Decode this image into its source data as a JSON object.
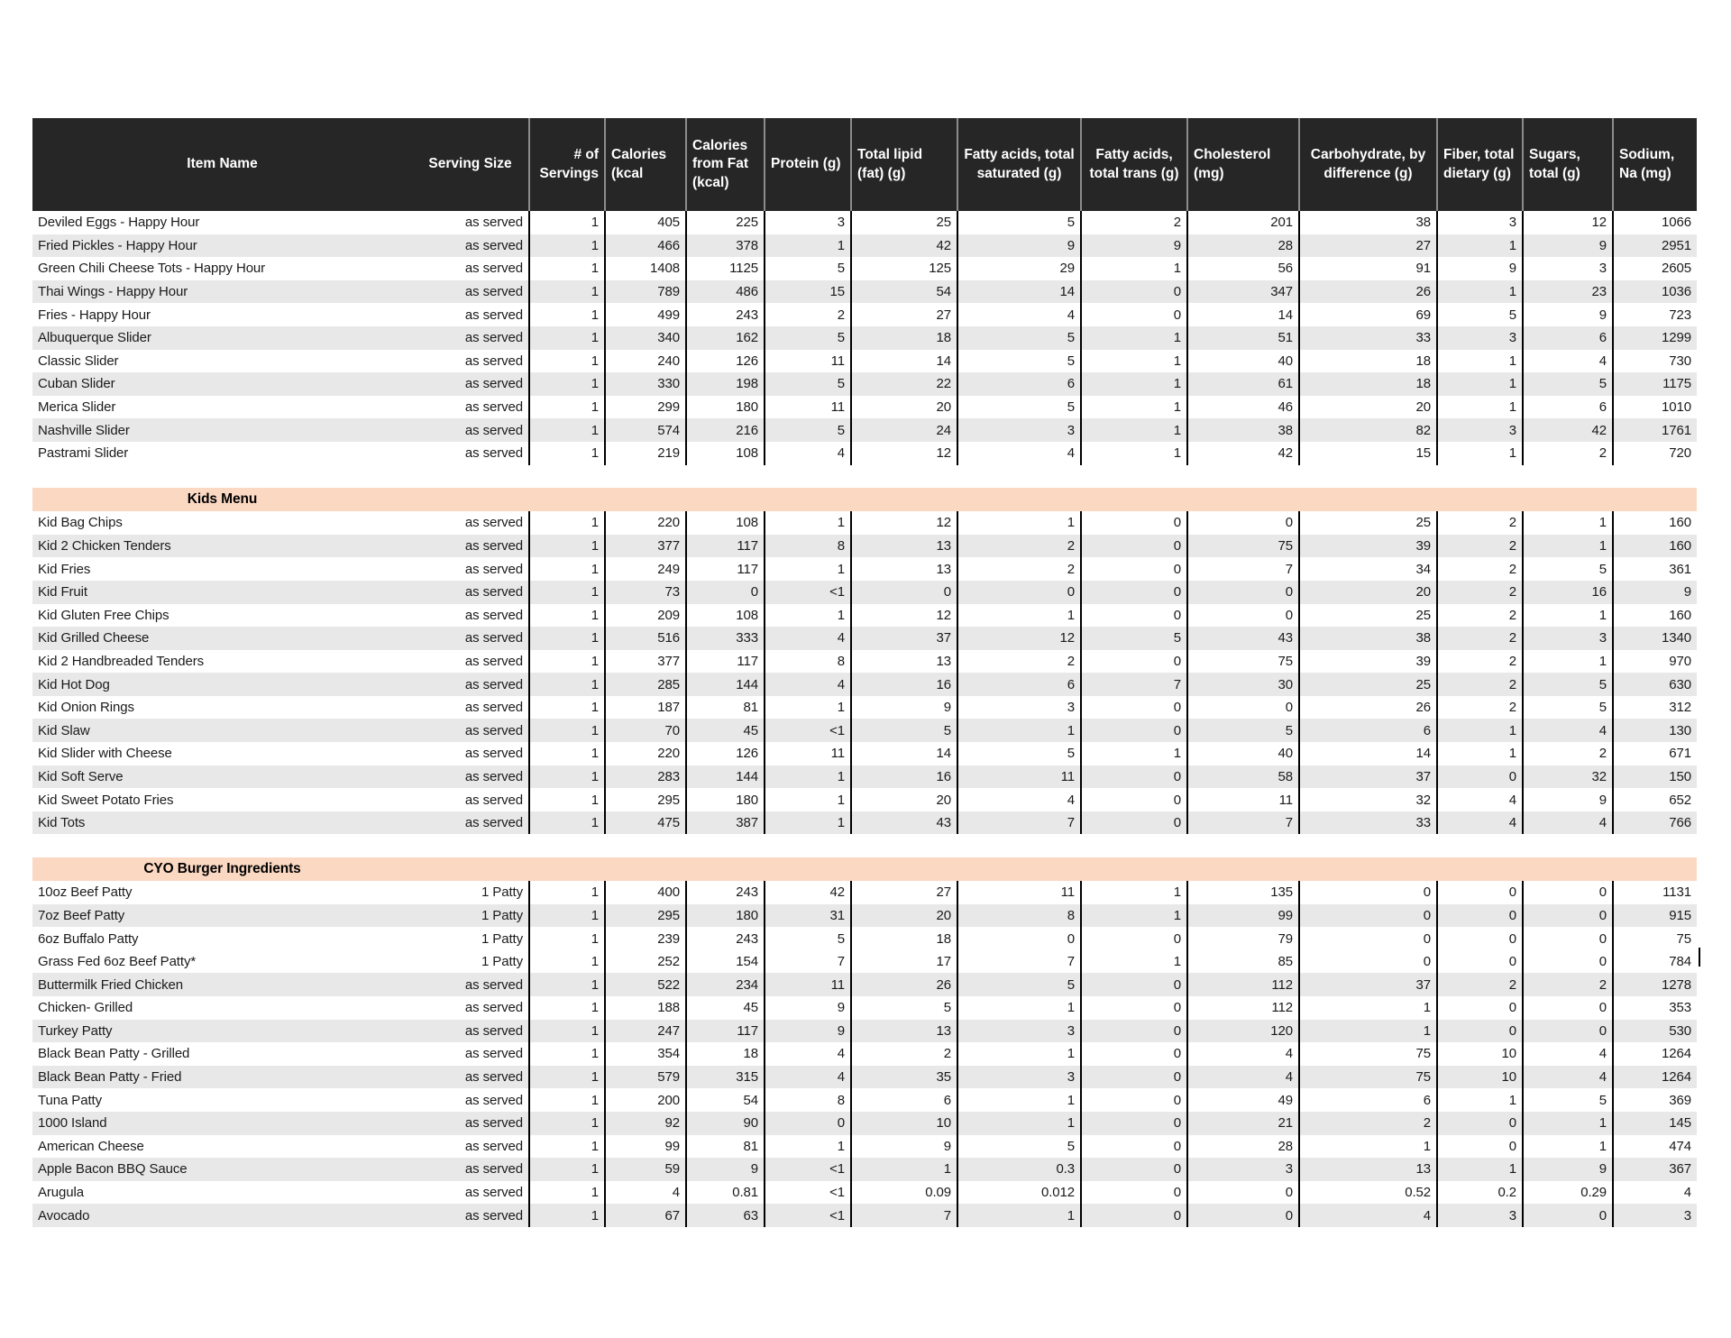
{
  "table": {
    "columns": [
      "Item Name",
      "Serving Size",
      "# of Servings",
      "Calories (kcal",
      "Calories from Fat (kcal)",
      "Protein (g)",
      "Total lipid (fat) (g)",
      "Fatty acids, total saturated (g)",
      "Fatty acids, total trans (g)",
      "Cholesterol (mg)",
      "Carbohydrate, by difference (g)",
      "Fiber, total dietary (g)",
      "Sugars, total (g)",
      "Sodium, Na (mg)"
    ],
    "sections": [
      {
        "title": "",
        "shaded_rows": [
          1,
          3,
          5,
          7,
          9
        ],
        "rows": [
          [
            "Deviled Eggs - Happy Hour",
            "as served",
            "1",
            "405",
            "225",
            "3",
            "25",
            "5",
            "2",
            "201",
            "38",
            "3",
            "12",
            "1066"
          ],
          [
            "Fried Pickles - Happy Hour",
            "as served",
            "1",
            "466",
            "378",
            "1",
            "42",
            "9",
            "9",
            "28",
            "27",
            "1",
            "9",
            "2951"
          ],
          [
            "Green Chili Cheese Tots - Happy Hour",
            "as served",
            "1",
            "1408",
            "1125",
            "5",
            "125",
            "29",
            "1",
            "56",
            "91",
            "9",
            "3",
            "2605"
          ],
          [
            "Thai Wings - Happy Hour",
            "as served",
            "1",
            "789",
            "486",
            "15",
            "54",
            "14",
            "0",
            "347",
            "26",
            "1",
            "23",
            "1036"
          ],
          [
            "Fries - Happy Hour",
            "as served",
            "1",
            "499",
            "243",
            "2",
            "27",
            "4",
            "0",
            "14",
            "69",
            "5",
            "9",
            "723"
          ],
          [
            "Albuquerque Slider",
            "as served",
            "1",
            "340",
            "162",
            "5",
            "18",
            "5",
            "1",
            "51",
            "33",
            "3",
            "6",
            "1299"
          ],
          [
            "Classic Slider",
            "as served",
            "1",
            "240",
            "126",
            "11",
            "14",
            "5",
            "1",
            "40",
            "18",
            "1",
            "4",
            "730"
          ],
          [
            "Cuban Slider",
            "as served",
            "1",
            "330",
            "198",
            "5",
            "22",
            "6",
            "1",
            "61",
            "18",
            "1",
            "5",
            "1175"
          ],
          [
            "Merica Slider",
            "as served",
            "1",
            "299",
            "180",
            "11",
            "20",
            "5",
            "1",
            "46",
            "20",
            "1",
            "6",
            "1010"
          ],
          [
            "Nashville Slider",
            "as served",
            "1",
            "574",
            "216",
            "5",
            "24",
            "3",
            "1",
            "38",
            "82",
            "3",
            "42",
            "1761"
          ],
          [
            "Pastrami Slider",
            "as served",
            "1",
            "219",
            "108",
            "4",
            "12",
            "4",
            "1",
            "42",
            "15",
            "1",
            "2",
            "720"
          ]
        ]
      },
      {
        "title": "Kids Menu",
        "shaded_rows": [
          1,
          3,
          5,
          7,
          9,
          11,
          13
        ],
        "rows": [
          [
            "Kid Bag Chips",
            "as served",
            "1",
            "220",
            "108",
            "1",
            "12",
            "1",
            "0",
            "0",
            "25",
            "2",
            "1",
            "160"
          ],
          [
            "Kid 2 Chicken Tenders",
            "as served",
            "1",
            "377",
            "117",
            "8",
            "13",
            "2",
            "0",
            "75",
            "39",
            "2",
            "1",
            "160"
          ],
          [
            "Kid Fries",
            "as served",
            "1",
            "249",
            "117",
            "1",
            "13",
            "2",
            "0",
            "7",
            "34",
            "2",
            "5",
            "361"
          ],
          [
            "Kid Fruit",
            "as served",
            "1",
            "73",
            "0",
            "<1",
            "0",
            "0",
            "0",
            "0",
            "20",
            "2",
            "16",
            "9"
          ],
          [
            "Kid Gluten Free Chips",
            "as served",
            "1",
            "209",
            "108",
            "1",
            "12",
            "1",
            "0",
            "0",
            "25",
            "2",
            "1",
            "160"
          ],
          [
            "Kid Grilled Cheese",
            "as served",
            "1",
            "516",
            "333",
            "4",
            "37",
            "12",
            "5",
            "43",
            "38",
            "2",
            "3",
            "1340"
          ],
          [
            "Kid 2 Handbreaded Tenders",
            "as served",
            "1",
            "377",
            "117",
            "8",
            "13",
            "2",
            "0",
            "75",
            "39",
            "2",
            "1",
            "970"
          ],
          [
            "Kid Hot Dog",
            "as served",
            "1",
            "285",
            "144",
            "4",
            "16",
            "6",
            "7",
            "30",
            "25",
            "2",
            "5",
            "630"
          ],
          [
            "Kid Onion Rings",
            "as served",
            "1",
            "187",
            "81",
            "1",
            "9",
            "3",
            "0",
            "0",
            "26",
            "2",
            "5",
            "312"
          ],
          [
            "Kid Slaw",
            "as served",
            "1",
            "70",
            "45",
            "<1",
            "5",
            "1",
            "0",
            "5",
            "6",
            "1",
            "4",
            "130"
          ],
          [
            "Kid Slider with Cheese",
            "as served",
            "1",
            "220",
            "126",
            "11",
            "14",
            "5",
            "1",
            "40",
            "14",
            "1",
            "2",
            "671"
          ],
          [
            "Kid Soft Serve",
            "as served",
            "1",
            "283",
            "144",
            "1",
            "16",
            "11",
            "0",
            "58",
            "37",
            "0",
            "32",
            "150"
          ],
          [
            "Kid Sweet Potato Fries",
            "as served",
            "1",
            "295",
            "180",
            "1",
            "20",
            "4",
            "0",
            "11",
            "32",
            "4",
            "9",
            "652"
          ],
          [
            "Kid Tots",
            "as served",
            "1",
            "475",
            "387",
            "1",
            "43",
            "7",
            "0",
            "7",
            "33",
            "4",
            "4",
            "766"
          ]
        ]
      },
      {
        "title": "CYO Burger Ingredients",
        "shaded_rows": [
          1,
          4,
          6,
          8,
          10,
          12,
          14
        ],
        "rows": [
          [
            "10oz Beef Patty",
            "1 Patty",
            "1",
            "400",
            "243",
            "42",
            "27",
            "11",
            "1",
            "135",
            "0",
            "0",
            "0",
            "1131"
          ],
          [
            "7oz Beef Patty",
            "1 Patty",
            "1",
            "295",
            "180",
            "31",
            "20",
            "8",
            "1",
            "99",
            "0",
            "0",
            "0",
            "915"
          ],
          [
            "6oz Buffalo Patty",
            "1 Patty",
            "1",
            "239",
            "243",
            "5",
            "18",
            "0",
            "0",
            "79",
            "0",
            "0",
            "0",
            "75"
          ],
          [
            "Grass Fed 6oz Beef Patty*",
            "1 Patty",
            "1",
            "252",
            "154",
            "7",
            "17",
            "7",
            "1",
            "85",
            "0",
            "0",
            "0",
            "784"
          ],
          [
            "Buttermilk Fried Chicken",
            "as served",
            "1",
            "522",
            "234",
            "11",
            "26",
            "5",
            "0",
            "112",
            "37",
            "2",
            "2",
            "1278"
          ],
          [
            "Chicken- Grilled",
            "as served",
            "1",
            "188",
            "45",
            "9",
            "5",
            "1",
            "0",
            "112",
            "1",
            "0",
            "0",
            "353"
          ],
          [
            "Turkey Patty",
            "as served",
            "1",
            "247",
            "117",
            "9",
            "13",
            "3",
            "0",
            "120",
            "1",
            "0",
            "0",
            "530"
          ],
          [
            "Black Bean Patty - Grilled",
            "as served",
            "1",
            "354",
            "18",
            "4",
            "2",
            "1",
            "0",
            "4",
            "75",
            "10",
            "4",
            "1264"
          ],
          [
            "Black Bean Patty - Fried",
            "as served",
            "1",
            "579",
            "315",
            "4",
            "35",
            "3",
            "0",
            "4",
            "75",
            "10",
            "4",
            "1264"
          ],
          [
            "Tuna Patty",
            "as served",
            "1",
            "200",
            "54",
            "8",
            "6",
            "1",
            "0",
            "49",
            "6",
            "1",
            "5",
            "369"
          ],
          [
            "1000 Island",
            "as served",
            "1",
            "92",
            "90",
            "0",
            "10",
            "1",
            "0",
            "21",
            "2",
            "0",
            "1",
            "145"
          ],
          [
            "American Cheese",
            "as served",
            "1",
            "99",
            "81",
            "1",
            "9",
            "5",
            "0",
            "28",
            "1",
            "0",
            "1",
            "474"
          ],
          [
            "Apple Bacon BBQ Sauce",
            "as served",
            "1",
            "59",
            "9",
            "<1",
            "1",
            "0.3",
            "0",
            "3",
            "13",
            "1",
            "9",
            "367"
          ],
          [
            "Arugula",
            "as served",
            "1",
            "4",
            "0.81",
            "<1",
            "0.09",
            "0.012",
            "0",
            "0",
            "0.52",
            "0.2",
            "0.29",
            "4"
          ],
          [
            "Avocado",
            "as served",
            "1",
            "67",
            "63",
            "<1",
            "7",
            "1",
            "0",
            "0",
            "4",
            "3",
            "0",
            "3"
          ]
        ]
      }
    ]
  },
  "colors": {
    "header_bg": "#262626",
    "header_text": "#ffffff",
    "row_shaded": "#e8e8e8",
    "row_plain": "#ffffff",
    "section_band": "#fbd8c2",
    "grid_line": "#000000",
    "header_divider": "#8c8c8c"
  }
}
